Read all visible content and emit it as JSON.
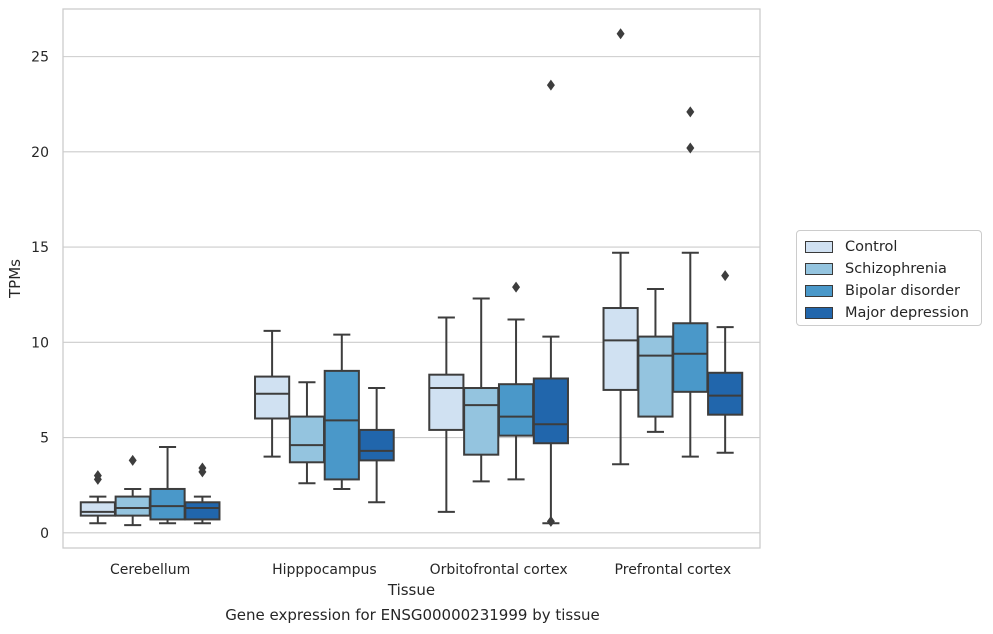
{
  "caption": "Gene expression for ENSG00000231999 by tissue",
  "chart_data": {
    "type": "box",
    "xlabel": "Tissue",
    "ylabel": "TPMs",
    "ylim": [
      -0.8,
      27.5
    ],
    "yticks": [
      0,
      5,
      10,
      15,
      20,
      25
    ],
    "grid": "horizontal",
    "legend_position": "right",
    "categories": [
      "Cerebellum",
      "Hipppocampus",
      "Orbitofrontal cortex",
      "Prefrontal cortex"
    ],
    "series": [
      {
        "name": "Control",
        "color": "#d0e1f2",
        "boxes": [
          {
            "whislo": 0.5,
            "q1": 0.9,
            "med": 1.1,
            "q3": 1.6,
            "whishi": 1.9,
            "fliers": [
              2.8,
              3.0
            ]
          },
          {
            "whislo": 4.0,
            "q1": 6.0,
            "med": 7.3,
            "q3": 8.2,
            "whishi": 10.6,
            "fliers": []
          },
          {
            "whislo": 1.1,
            "q1": 5.4,
            "med": 7.6,
            "q3": 8.3,
            "whishi": 11.3,
            "fliers": []
          },
          {
            "whislo": 3.6,
            "q1": 7.5,
            "med": 10.1,
            "q3": 11.8,
            "whishi": 14.7,
            "fliers": [
              26.2
            ]
          }
        ]
      },
      {
        "name": "Schizophrenia",
        "color": "#94c4df",
        "boxes": [
          {
            "whislo": 0.4,
            "q1": 0.9,
            "med": 1.3,
            "q3": 1.9,
            "whishi": 2.3,
            "fliers": [
              3.8
            ]
          },
          {
            "whislo": 2.6,
            "q1": 3.7,
            "med": 4.6,
            "q3": 6.1,
            "whishi": 7.9,
            "fliers": []
          },
          {
            "whislo": 2.7,
            "q1": 4.1,
            "med": 6.7,
            "q3": 7.6,
            "whishi": 12.3,
            "fliers": []
          },
          {
            "whislo": 5.3,
            "q1": 6.1,
            "med": 9.3,
            "q3": 10.3,
            "whishi": 12.8,
            "fliers": []
          }
        ]
      },
      {
        "name": "Bipolar disorder",
        "color": "#4a98c9",
        "boxes": [
          {
            "whislo": 0.5,
            "q1": 0.7,
            "med": 1.4,
            "q3": 2.3,
            "whishi": 4.5,
            "fliers": []
          },
          {
            "whislo": 2.3,
            "q1": 2.8,
            "med": 5.9,
            "q3": 8.5,
            "whishi": 10.4,
            "fliers": []
          },
          {
            "whislo": 2.8,
            "q1": 5.1,
            "med": 6.1,
            "q3": 7.8,
            "whishi": 11.2,
            "fliers": [
              12.9
            ]
          },
          {
            "whislo": 4.0,
            "q1": 7.4,
            "med": 9.4,
            "q3": 11.0,
            "whishi": 14.7,
            "fliers": [
              20.2,
              22.1
            ]
          }
        ]
      },
      {
        "name": "Major depression",
        "color": "#2166ac",
        "boxes": [
          {
            "whislo": 0.5,
            "q1": 0.7,
            "med": 1.3,
            "q3": 1.6,
            "whishi": 1.9,
            "fliers": [
              3.2,
              3.4
            ]
          },
          {
            "whislo": 1.6,
            "q1": 3.8,
            "med": 4.3,
            "q3": 5.4,
            "whishi": 7.6,
            "fliers": []
          },
          {
            "whislo": 0.5,
            "q1": 4.7,
            "med": 5.7,
            "q3": 8.1,
            "whishi": 10.3,
            "fliers": [
              0.6,
              23.5
            ]
          },
          {
            "whislo": 4.2,
            "q1": 6.2,
            "med": 7.2,
            "q3": 8.4,
            "whishi": 10.8,
            "fliers": [
              13.5
            ]
          }
        ]
      }
    ]
  }
}
